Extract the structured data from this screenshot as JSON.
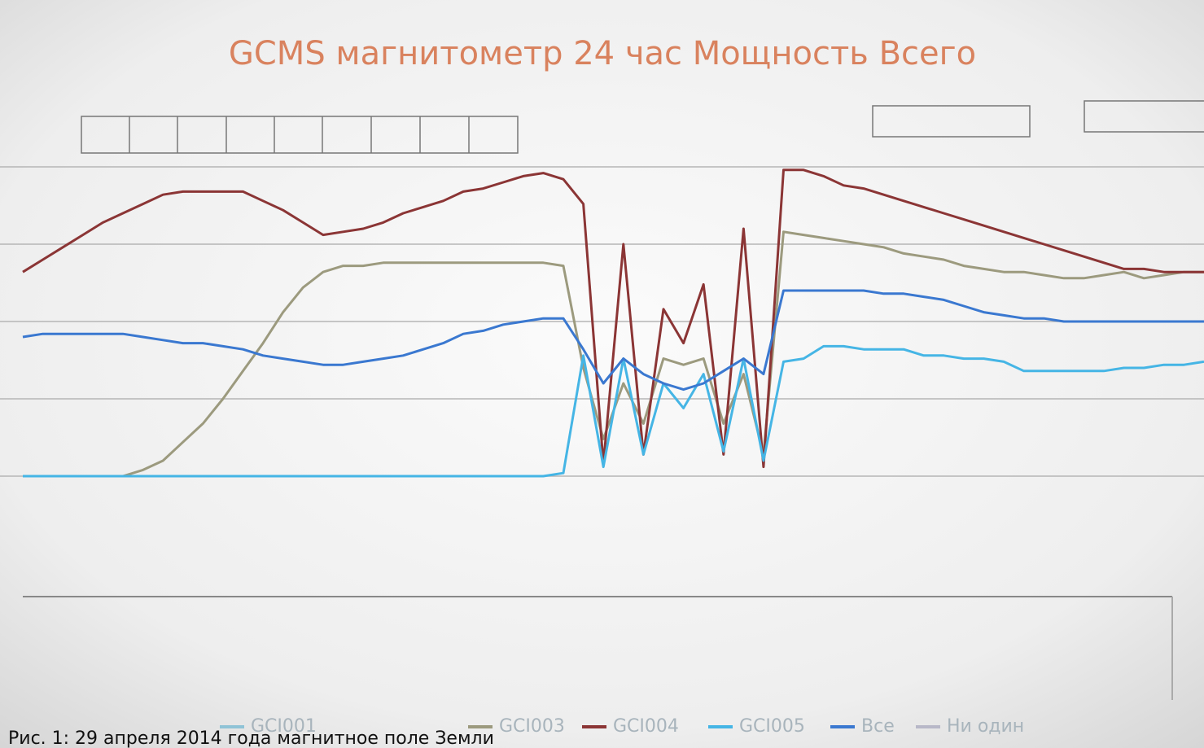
{
  "chart_data": {
    "type": "line",
    "title": "GCMS магнитометр 24 час Мощность Всего",
    "caption": "Рис. 1: 29 апреля 2014 года магнитное поле Земли",
    "ylim": [
      0,
      100
    ],
    "yticks": [
      0,
      25,
      50,
      75,
      100
    ],
    "grid": true,
    "legend": "bottom",
    "series": [
      {
        "name": "GCI001",
        "color": "#8fc3d6"
      },
      {
        "name": "GCI003",
        "color": "#9c9a7e",
        "values": [
          0,
          0,
          0,
          0,
          0,
          0,
          2,
          5,
          11,
          17,
          25,
          34,
          43,
          53,
          61,
          66,
          68,
          68,
          69,
          69,
          69,
          69,
          69,
          69,
          69,
          69,
          69,
          68,
          35,
          12,
          30,
          17,
          38,
          36,
          38,
          17,
          33,
          7,
          79,
          78,
          77,
          76,
          75,
          74,
          72,
          71,
          70,
          68,
          67,
          66,
          66,
          65,
          64,
          64,
          65,
          66,
          64,
          65,
          66,
          66
        ]
      },
      {
        "name": "GCI004",
        "color": "#8b3535",
        "values": [
          66,
          70,
          74,
          78,
          82,
          85,
          88,
          91,
          92,
          92,
          92,
          92,
          89,
          86,
          82,
          78,
          79,
          80,
          82,
          85,
          87,
          89,
          92,
          93,
          95,
          97,
          98,
          96,
          88,
          4,
          75,
          7,
          54,
          43,
          62,
          7,
          80,
          3,
          99,
          99,
          97,
          94,
          93,
          91,
          89,
          87,
          85,
          83,
          81,
          79,
          77,
          75,
          73,
          71,
          69,
          67,
          67,
          66,
          66,
          66
        ]
      },
      {
        "name": "GCI005",
        "color": "#45b5e5",
        "values": [
          0,
          0,
          0,
          0,
          0,
          0,
          0,
          0,
          0,
          0,
          0,
          0,
          0,
          0,
          0,
          0,
          0,
          0,
          0,
          0,
          0,
          0,
          0,
          0,
          0,
          0,
          0,
          1,
          39,
          3,
          38,
          7,
          30,
          22,
          33,
          8,
          38,
          5,
          37,
          38,
          42,
          42,
          41,
          41,
          41,
          39,
          39,
          38,
          38,
          37,
          34,
          34,
          34,
          34,
          34,
          35,
          35,
          36,
          36,
          37
        ]
      },
      {
        "name": "Все",
        "color": "#3a78d0",
        "values": [
          45,
          46,
          46,
          46,
          46,
          46,
          45,
          44,
          43,
          43,
          42,
          41,
          39,
          38,
          37,
          36,
          36,
          37,
          38,
          39,
          41,
          43,
          46,
          47,
          49,
          50,
          51,
          51,
          41,
          30,
          38,
          33,
          30,
          28,
          30,
          34,
          38,
          33,
          60,
          60,
          60,
          60,
          60,
          59,
          59,
          58,
          57,
          55,
          53,
          52,
          51,
          51,
          50,
          50,
          50,
          50,
          50,
          50,
          50,
          50
        ]
      },
      {
        "name": "Ни один",
        "color": "#b8b8c8"
      }
    ]
  }
}
